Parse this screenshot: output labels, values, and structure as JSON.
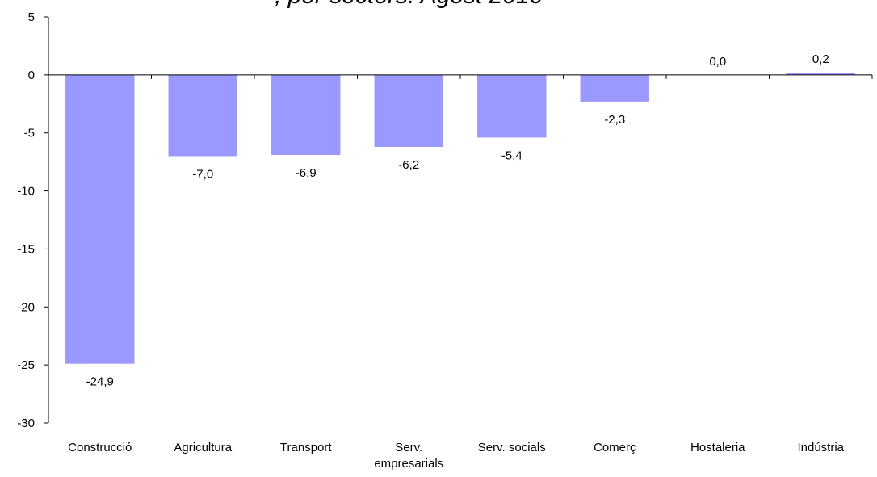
{
  "chart_data": {
    "type": "bar",
    "title": ", per sectors. Agost 2010",
    "categories": [
      "Construcció",
      "Agricultura",
      "Transport",
      "Serv. empresarials",
      "Serv. socials",
      "Comerç",
      "Hostaleria",
      "Indústria"
    ],
    "category_lines": [
      [
        "Construcció"
      ],
      [
        "Agricultura"
      ],
      [
        "Transport"
      ],
      [
        "Serv.",
        "empresarials"
      ],
      [
        "Serv. socials"
      ],
      [
        "Comerç"
      ],
      [
        "Hostaleria"
      ],
      [
        "Indústria"
      ]
    ],
    "values": [
      -24.9,
      -7.0,
      -6.9,
      -6.2,
      -5.4,
      -2.3,
      0.0,
      0.2
    ],
    "value_labels": [
      "-24,9",
      "-7,0",
      "-6,9",
      "-6,2",
      "-5,4",
      "-2,3",
      "0,0",
      "0,2"
    ],
    "ylim": [
      -30,
      5
    ],
    "yticks": [
      5,
      0,
      -5,
      -10,
      -15,
      -20,
      -25,
      -30
    ],
    "ytick_labels": [
      "5",
      "0",
      "-5",
      "-10",
      "-15",
      "-20",
      "-25",
      "-30"
    ],
    "xlabel": "",
    "ylabel": "",
    "grid": false,
    "bar_color": "#9999ff"
  }
}
